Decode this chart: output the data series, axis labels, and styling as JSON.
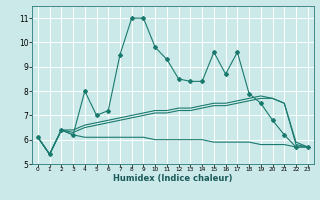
{
  "xlabel": "Humidex (Indice chaleur)",
  "background_color": "#cce9e9",
  "grid_color": "#ffffff",
  "line_color": "#1a7a6e",
  "x_values": [
    0,
    1,
    2,
    3,
    4,
    5,
    6,
    7,
    8,
    9,
    10,
    11,
    12,
    13,
    14,
    15,
    16,
    17,
    18,
    19,
    20,
    21,
    22,
    23
  ],
  "main_line": [
    6.1,
    5.4,
    6.4,
    6.2,
    8.0,
    7.0,
    7.2,
    9.5,
    11.0,
    11.0,
    9.8,
    9.3,
    8.5,
    8.4,
    8.4,
    9.6,
    8.7,
    9.6,
    7.9,
    7.5,
    6.8,
    6.2,
    5.7,
    5.7
  ],
  "line2": [
    6.1,
    5.4,
    6.4,
    6.3,
    6.5,
    6.6,
    6.7,
    6.8,
    6.9,
    7.0,
    7.1,
    7.1,
    7.2,
    7.2,
    7.3,
    7.4,
    7.4,
    7.5,
    7.6,
    7.7,
    7.7,
    7.5,
    5.8,
    5.7
  ],
  "line3": [
    6.1,
    5.4,
    6.4,
    6.4,
    6.6,
    6.7,
    6.8,
    6.9,
    7.0,
    7.1,
    7.2,
    7.2,
    7.3,
    7.3,
    7.4,
    7.5,
    7.5,
    7.6,
    7.7,
    7.8,
    7.7,
    7.5,
    5.9,
    5.7
  ],
  "line4": [
    6.1,
    5.4,
    6.4,
    6.2,
    6.1,
    6.1,
    6.1,
    6.1,
    6.1,
    6.1,
    6.0,
    6.0,
    6.0,
    6.0,
    6.0,
    5.9,
    5.9,
    5.9,
    5.9,
    5.8,
    5.8,
    5.8,
    5.7,
    5.7
  ],
  "ylim": [
    5.0,
    11.5
  ],
  "xlim": [
    -0.5,
    23.5
  ],
  "yticks": [
    5,
    6,
    7,
    8,
    9,
    10,
    11
  ],
  "xticks": [
    0,
    1,
    2,
    3,
    4,
    5,
    6,
    7,
    8,
    9,
    10,
    11,
    12,
    13,
    14,
    15,
    16,
    17,
    18,
    19,
    20,
    21,
    22,
    23
  ]
}
